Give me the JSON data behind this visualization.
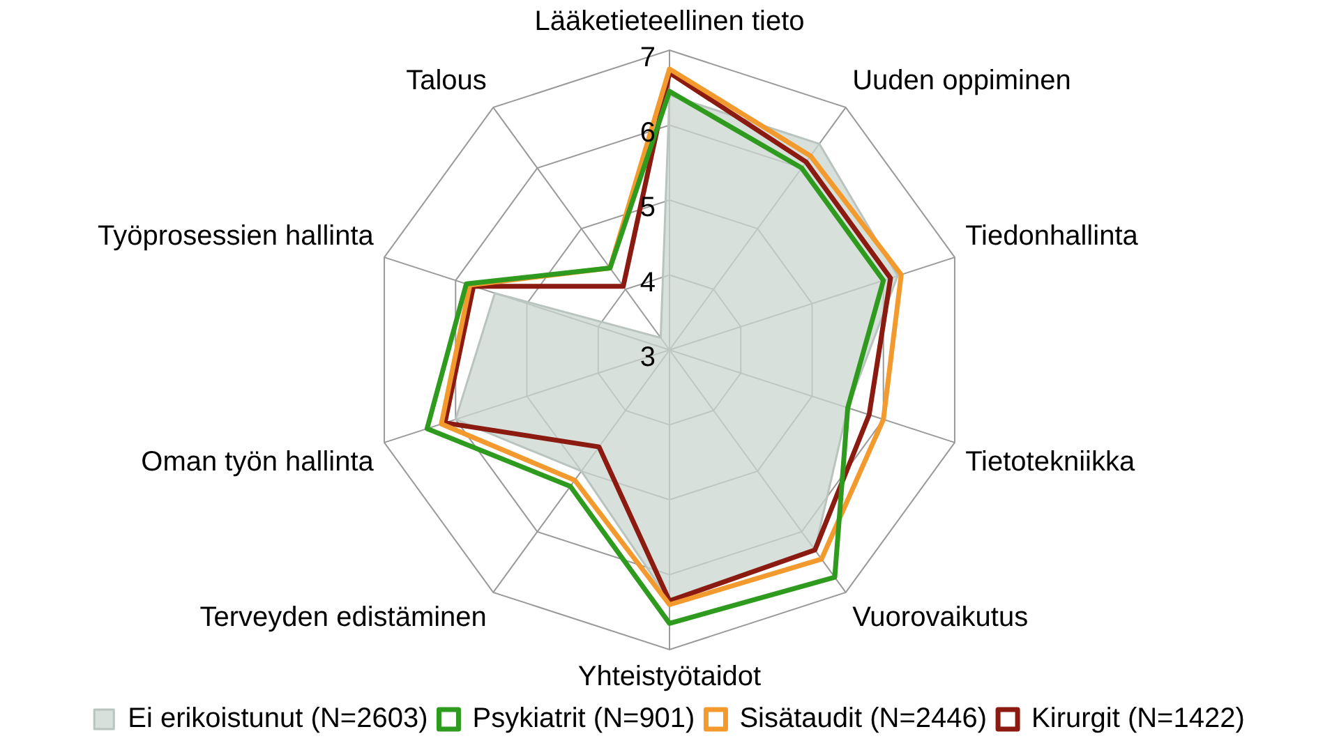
{
  "chart_data": {
    "type": "radar",
    "categories": [
      "Lääketieteellinen tieto",
      "Uuden oppiminen",
      "Tiedonhallinta",
      "Tietotekniikka",
      "Vuorovaikutus",
      "Yhteistyötaidot",
      "Terveyden edistäminen",
      "Oman työn hallinta",
      "Työprosessien hallinta",
      "Talous"
    ],
    "series": [
      {
        "name": "Ei erikoistunut (N=2603)",
        "color": "#c9d5cf",
        "type": "area",
        "values": [
          6.4,
          6.4,
          6.2,
          5.5,
          6.3,
          6.35,
          5.0,
          6.0,
          5.45,
          3.2
        ]
      },
      {
        "name": "Psykiatrit (N=901)",
        "color": "#2e9a1e",
        "values": [
          6.45,
          6.0,
          6.0,
          5.5,
          6.75,
          6.65,
          5.25,
          6.4,
          5.85,
          4.35
        ]
      },
      {
        "name": "Sisätaudit (N=2446)",
        "color": "#f39a2e",
        "values": [
          6.75,
          6.2,
          6.25,
          6.0,
          6.45,
          6.4,
          5.15,
          6.2,
          5.8,
          4.35
        ]
      },
      {
        "name": "Kirurgit (N=1422)",
        "color": "#8b1a10",
        "values": [
          6.7,
          6.1,
          6.1,
          5.8,
          6.3,
          6.35,
          4.6,
          6.15,
          5.75,
          4.05
        ]
      }
    ],
    "ylim": [
      3,
      7
    ],
    "yticks": [
      3,
      4,
      5,
      6,
      7
    ],
    "grid": true,
    "legend": "bottom",
    "marker": "none"
  }
}
